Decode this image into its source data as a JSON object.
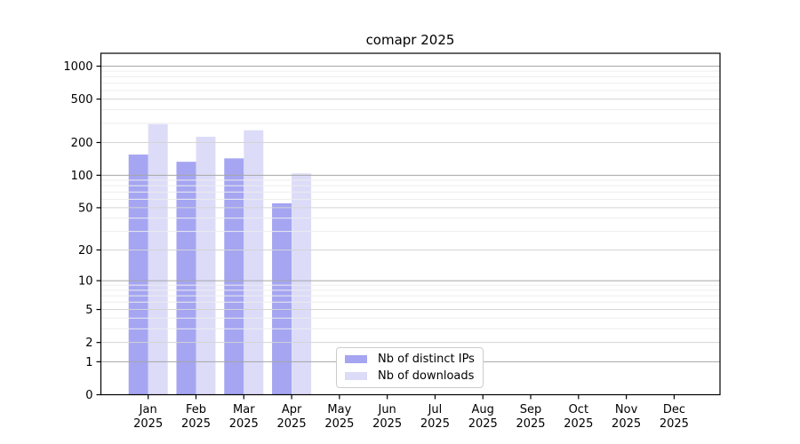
{
  "chart_data": {
    "type": "bar",
    "title": "comapr 2025",
    "categories": [
      "Jan",
      "Feb",
      "Mar",
      "Apr",
      "May",
      "Jun",
      "Jul",
      "Aug",
      "Sep",
      "Oct",
      "Nov",
      "Dec"
    ],
    "category_year": "2025",
    "series": [
      {
        "name": "Nb of distinct IPs",
        "color": "#a5a5f2",
        "values": [
          155,
          133,
          143,
          55,
          0,
          0,
          0,
          0,
          0,
          0,
          0,
          0
        ]
      },
      {
        "name": "Nb of downloads",
        "color": "#dcdcf9",
        "values": [
          295,
          226,
          259,
          104,
          0,
          0,
          0,
          0,
          0,
          0,
          0,
          0
        ]
      }
    ],
    "y_axis": {
      "scale": "log1p",
      "ticks": [
        0,
        1,
        2,
        5,
        10,
        20,
        50,
        100,
        200,
        500,
        1000
      ],
      "minor_ticks": [
        3,
        4,
        6,
        7,
        8,
        9,
        30,
        40,
        60,
        70,
        80,
        90,
        300,
        400,
        600,
        700,
        800,
        900
      ],
      "ylim": [
        0,
        1000
      ]
    },
    "grid": "on",
    "legend_position": "inside-bottom-center",
    "colors": {
      "axis": "#000000",
      "grid_decade": "#a6a6a6",
      "grid_major": "#d4d4d4",
      "grid_minor": "#ededed",
      "legend_border": "#cccccc",
      "background": "#ffffff"
    }
  }
}
